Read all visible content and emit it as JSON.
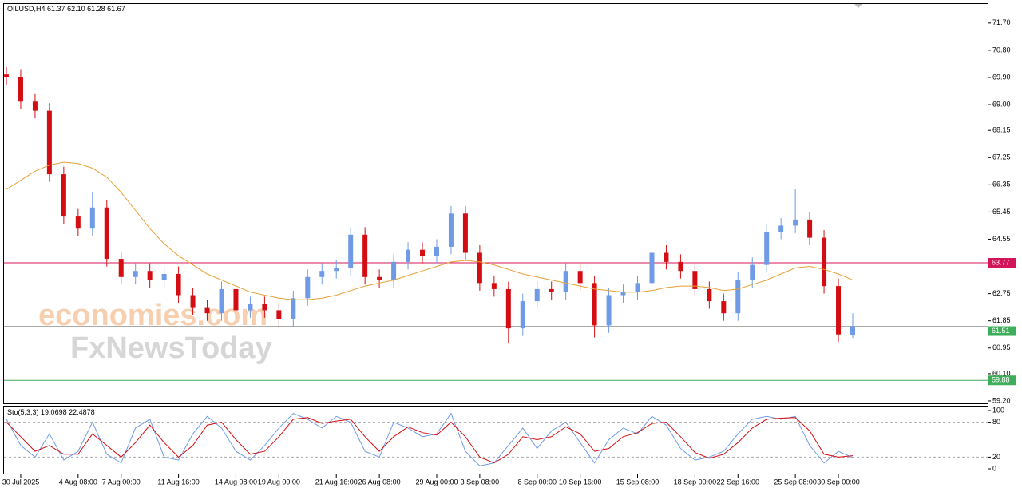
{
  "chart_data": [
    {
      "type": "candlestick",
      "title": "OILUSD,H4",
      "header_labels": [
        "61.37",
        "62.10",
        "61.28",
        "61.67"
      ],
      "watermark": [
        "economies.com",
        "FxNewsToday"
      ],
      "categories": [
        null,
        "30 Jul 2025",
        null,
        null,
        null,
        "4 Aug 08:00",
        null,
        null,
        "7 Aug 00:00",
        null,
        null,
        null,
        "11 Aug 16:00",
        null,
        null,
        null,
        "14 Aug 08:00",
        null,
        null,
        "19 Aug 00:00",
        null,
        null,
        null,
        "21 Aug 16:00",
        null,
        null,
        "26 Aug 08:00",
        null,
        null,
        null,
        "29 Aug 00:00",
        null,
        null,
        "3 Sep 08:00",
        null,
        null,
        null,
        "8 Sep 00:00",
        null,
        null,
        "10 Sep 16:00",
        null,
        null,
        null,
        "15 Sep 08:00",
        null,
        null,
        null,
        "18 Sep 00:00",
        null,
        null,
        "22 Sep 16:00",
        null,
        null,
        null,
        "25 Sep 08:00",
        null,
        null,
        "30 Sep 00:00",
        null
      ],
      "open": [
        70.0,
        69.9,
        69.1,
        68.8,
        66.7,
        65.3,
        64.9,
        65.6,
        63.9,
        63.3,
        63.5,
        63.2,
        63.4,
        62.7,
        62.3,
        62.1,
        62.9,
        62.2,
        62.4,
        62.2,
        61.9,
        62.6,
        63.3,
        63.5,
        63.6,
        64.7,
        63.3,
        63.2,
        63.8,
        64.2,
        64.0,
        64.3,
        65.4,
        64.1,
        63.1,
        62.9,
        61.6,
        62.5,
        62.9,
        62.8,
        63.5,
        63.1,
        61.7,
        62.7,
        62.8,
        63.1,
        64.1,
        63.8,
        63.5,
        62.9,
        62.5,
        62.1,
        63.2,
        63.7,
        64.8,
        65.0,
        65.2,
        64.6,
        63.0,
        61.37
      ],
      "high": [
        70.25,
        70.15,
        69.35,
        69.05,
        66.95,
        65.55,
        66.1,
        65.85,
        64.15,
        63.75,
        63.75,
        63.65,
        63.65,
        62.95,
        62.55,
        63.15,
        63.15,
        62.65,
        62.65,
        62.45,
        62.85,
        63.55,
        63.75,
        63.85,
        64.95,
        64.95,
        63.55,
        64.05,
        64.45,
        64.45,
        64.55,
        65.65,
        65.65,
        64.35,
        63.35,
        63.15,
        62.75,
        63.15,
        63.15,
        63.75,
        63.75,
        63.35,
        62.95,
        63.05,
        63.35,
        64.35,
        64.35,
        64.05,
        63.75,
        63.15,
        62.75,
        63.45,
        63.95,
        65.05,
        65.25,
        66.2,
        65.45,
        64.85,
        63.25,
        62.1
      ],
      "low": [
        69.65,
        68.85,
        68.55,
        66.45,
        65.05,
        64.65,
        64.65,
        63.65,
        63.05,
        63.05,
        62.95,
        62.95,
        62.45,
        62.05,
        61.85,
        61.85,
        61.95,
        61.95,
        61.95,
        61.65,
        61.65,
        62.35,
        63.05,
        63.25,
        63.35,
        63.05,
        62.95,
        62.95,
        63.55,
        63.75,
        63.75,
        64.05,
        63.85,
        62.85,
        62.65,
        61.1,
        61.35,
        62.25,
        62.55,
        62.55,
        62.85,
        61.3,
        61.45,
        62.45,
        62.55,
        62.85,
        63.55,
        63.25,
        62.65,
        62.25,
        61.85,
        61.85,
        62.95,
        63.45,
        64.55,
        64.75,
        64.35,
        62.75,
        61.15,
        61.28
      ],
      "close": [
        69.9,
        69.1,
        68.8,
        66.7,
        65.3,
        64.9,
        65.6,
        63.9,
        63.3,
        63.5,
        63.2,
        63.4,
        62.7,
        62.3,
        62.1,
        62.9,
        62.2,
        62.4,
        62.2,
        61.9,
        62.6,
        63.3,
        63.5,
        63.6,
        64.7,
        63.3,
        63.2,
        63.8,
        64.2,
        64.0,
        64.3,
        65.4,
        64.1,
        63.1,
        62.9,
        61.6,
        62.5,
        62.9,
        62.8,
        63.5,
        63.1,
        61.7,
        62.7,
        62.8,
        63.1,
        64.1,
        63.8,
        63.5,
        62.9,
        62.5,
        62.1,
        63.2,
        63.7,
        64.8,
        65.0,
        65.2,
        64.6,
        63.0,
        61.4,
        61.67
      ],
      "up_color": "#6f9be6",
      "down_color": "#d40d12",
      "ma": {
        "color": "#e8a035",
        "values": [
          66.2,
          66.5,
          66.8,
          67.0,
          67.1,
          67.05,
          66.9,
          66.6,
          66.1,
          65.5,
          64.9,
          64.4,
          64.0,
          63.7,
          63.4,
          63.2,
          63.0,
          62.8,
          62.7,
          62.6,
          62.55,
          62.55,
          62.6,
          62.7,
          62.85,
          63.0,
          63.1,
          63.2,
          63.35,
          63.5,
          63.65,
          63.8,
          63.85,
          63.8,
          63.7,
          63.55,
          63.4,
          63.3,
          63.2,
          63.1,
          63.0,
          62.9,
          62.85,
          62.8,
          62.8,
          62.85,
          62.95,
          63.0,
          63.0,
          62.95,
          62.85,
          62.9,
          63.05,
          63.2,
          63.4,
          63.6,
          63.65,
          63.55,
          63.4,
          63.2
        ]
      },
      "levels": [
        {
          "value": 63.77,
          "color": "#d4145a"
        },
        {
          "value": 61.51,
          "color": "#3fae5a"
        },
        {
          "value": 59.88,
          "color": "#3fae5a"
        }
      ],
      "ylim": [
        59.12,
        72.33
      ],
      "yticks": [
        {
          "value": 71.7,
          "label": "71.70"
        },
        {
          "value": 70.8,
          "label": "70.80"
        },
        {
          "value": 69.9,
          "label": "69.90"
        },
        {
          "value": 69.0,
          "label": "69.00"
        },
        {
          "value": 68.15,
          "label": "68.15"
        },
        {
          "value": 67.25,
          "label": "67.25"
        },
        {
          "value": 66.35,
          "label": "66.35"
        },
        {
          "value": 65.45,
          "label": "65.45"
        },
        {
          "value": 64.55,
          "label": "64.55"
        },
        {
          "value": 63.65,
          "label": "63.65"
        },
        {
          "value": 62.75,
          "label": "62.75"
        },
        {
          "value": 61.85,
          "label": "61.85"
        },
        {
          "value": 60.95,
          "label": "60.95"
        },
        {
          "value": 60.1,
          "label": "60.10"
        },
        {
          "value": 59.2,
          "label": "59.20"
        }
      ]
    },
    {
      "type": "line",
      "title": "Sto(5,3,3)",
      "series": [
        {
          "color": "#6f9be6",
          "values": [
            85,
            40,
            20,
            60,
            15,
            30,
            80,
            25,
            10,
            70,
            85,
            20,
            15,
            60,
            90,
            70,
            30,
            15,
            40,
            70,
            95,
            85,
            70,
            90,
            80,
            30,
            20,
            80,
            70,
            55,
            60,
            95,
            30,
            5,
            10,
            40,
            70,
            35,
            65,
            80,
            45,
            10,
            50,
            70,
            60,
            90,
            75,
            35,
            15,
            20,
            30,
            60,
            85,
            90,
            85,
            90,
            40,
            10,
            30,
            19.0698
          ]
        },
        {
          "color": "#d40d12",
          "values": [
            80,
            55,
            30,
            40,
            25,
            25,
            60,
            40,
            20,
            45,
            75,
            45,
            20,
            40,
            75,
            80,
            50,
            25,
            30,
            55,
            85,
            88,
            78,
            82,
            85,
            55,
            30,
            55,
            72,
            62,
            58,
            80,
            55,
            20,
            10,
            25,
            55,
            50,
            55,
            72,
            60,
            30,
            35,
            55,
            62,
            78,
            80,
            55,
            28,
            18,
            25,
            45,
            70,
            85,
            87,
            88,
            65,
            25,
            20,
            22.4878
          ]
        }
      ],
      "ylim": [
        -8.2,
        108.2
      ],
      "yticks": [
        0,
        20,
        80,
        100
      ]
    }
  ]
}
